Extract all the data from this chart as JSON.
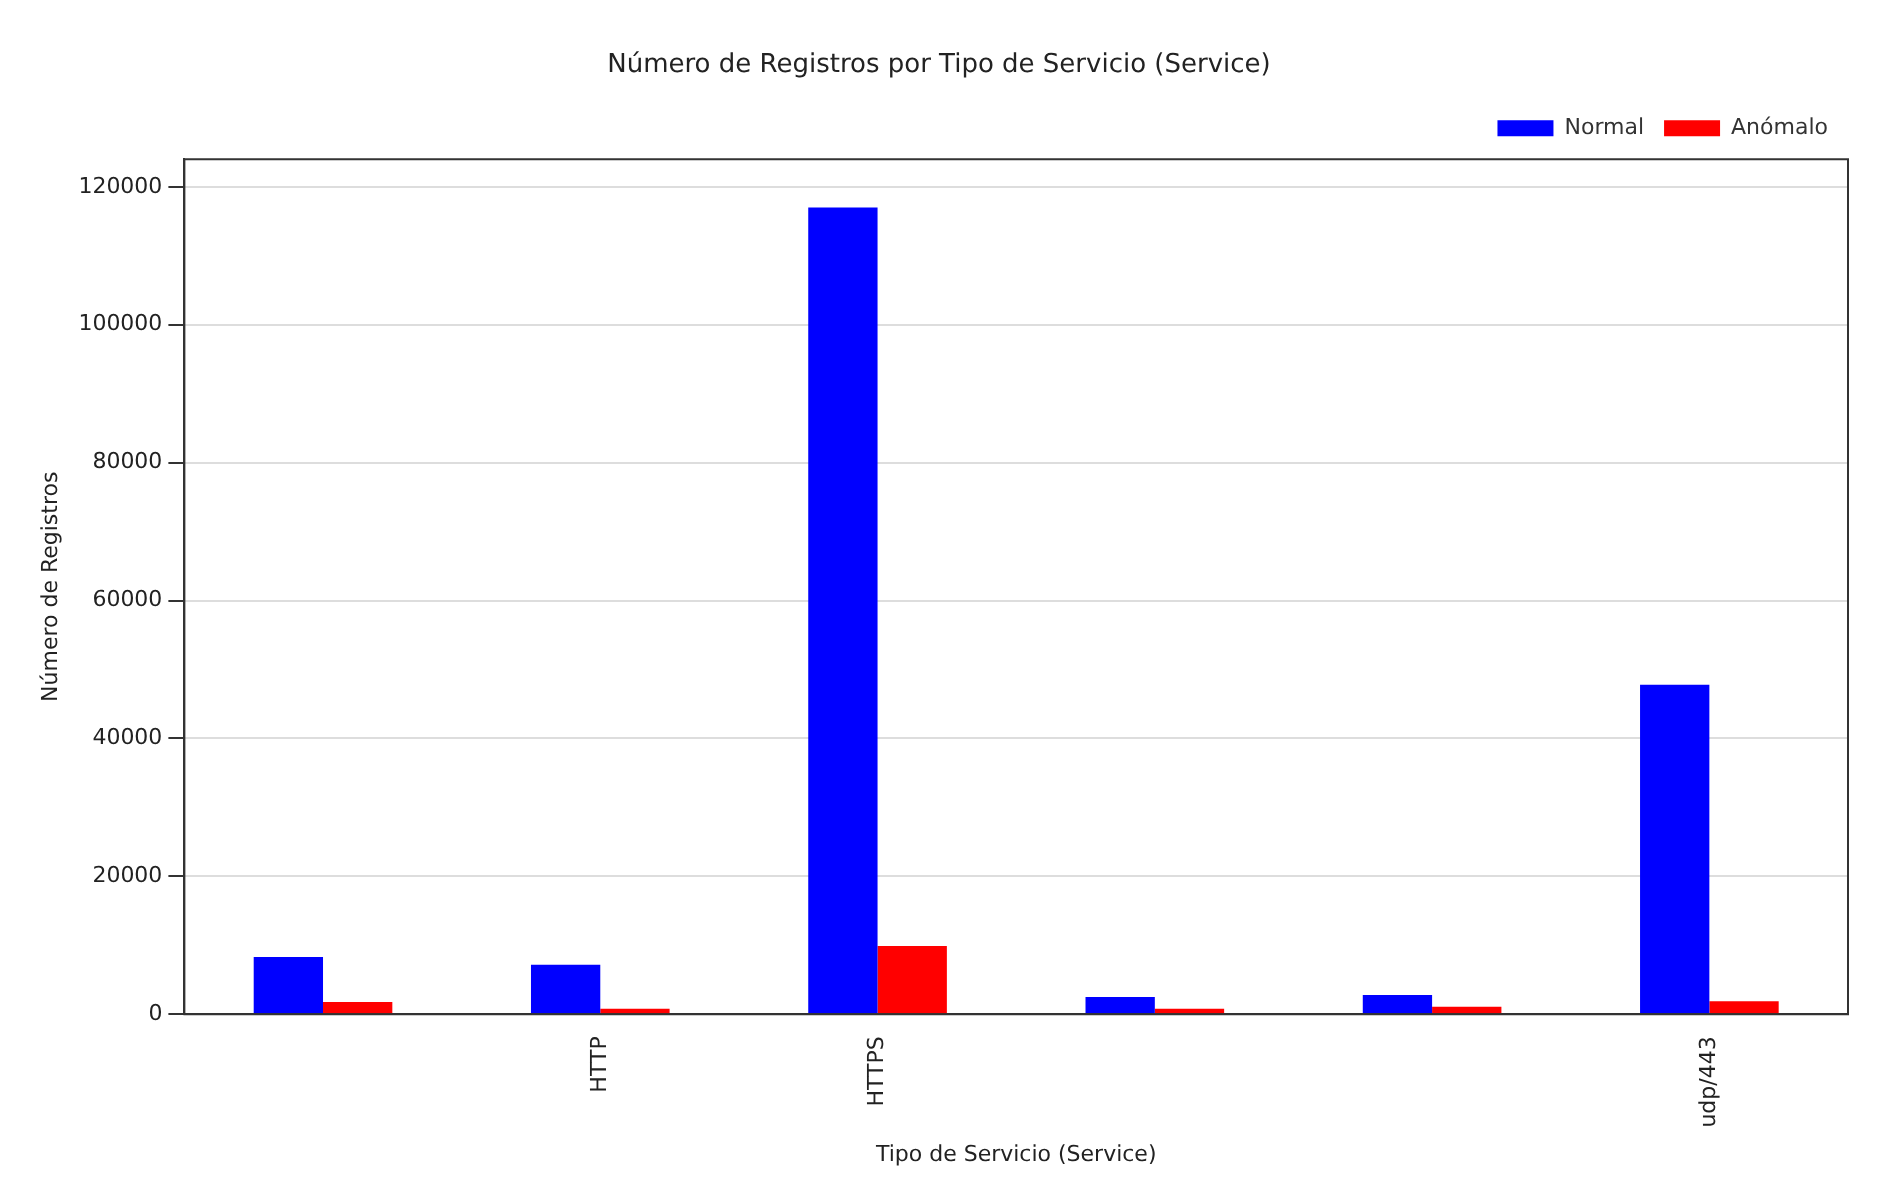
{
  "chart_data": {
    "type": "bar",
    "title": "Número de Registros por Tipo de Servicio (Service)",
    "xlabel": "Tipo de Servicio (Service)",
    "ylabel": "Número de Registros",
    "categories": [
      null,
      "HTTP",
      "HTTPS",
      null,
      null,
      "udp/443"
    ],
    "series": [
      {
        "name": "Normal",
        "color": "#0000ff",
        "values": [
          8300,
          7200,
          117000,
          2500,
          2800,
          47800
        ]
      },
      {
        "name": "Anómalo",
        "color": "#ff0000",
        "values": [
          1800,
          800,
          9900,
          800,
          1100,
          1900
        ]
      }
    ],
    "ylim": [
      0,
      124000
    ],
    "yticks": [
      0,
      20000,
      40000,
      60000,
      80000,
      100000,
      120000
    ],
    "grid": "y",
    "legend": "top right"
  }
}
